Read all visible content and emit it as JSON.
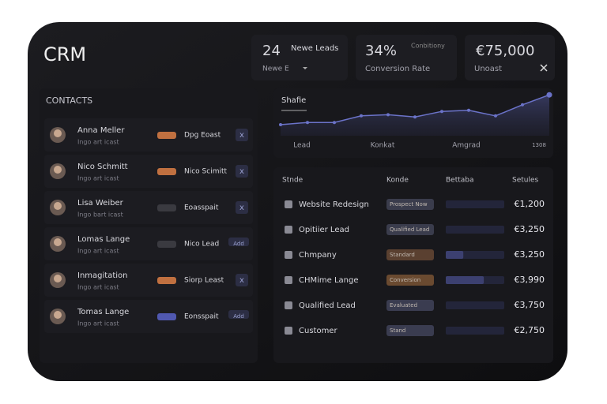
{
  "app": {
    "title": "CRM"
  },
  "kpis": [
    {
      "value": "24",
      "label": "Newe Leads",
      "sub": "Newe E"
    },
    {
      "value": "34%",
      "label": "Conbitiony",
      "sub": "Conversion Rate"
    },
    {
      "value": "€75,000",
      "label": "Unoast"
    }
  ],
  "contacts": {
    "title": "CONTACTS",
    "rows": [
      {
        "name": "Anna Meller",
        "sub": "Ingo art icast",
        "tag": "Dpg Eoast",
        "action": "x"
      },
      {
        "name": "Nico Schmitt",
        "sub": "Ingo art icast",
        "tag": "Nico Scimitt",
        "action": "x"
      },
      {
        "name": "Lisa Weiber",
        "sub": "Ingo bart icast",
        "tag": "Eoasspait",
        "action": "x"
      },
      {
        "name": "Lomas Lange",
        "sub": "Ingo art icast",
        "tag": "Nico Lead",
        "action": "Add"
      },
      {
        "name": "Inmagitation",
        "sub": "Ingo art icast",
        "tag": "Siorp Least",
        "action": "x"
      },
      {
        "name": "Tomas Lange",
        "sub": "Ingo art icast",
        "tag": "Eonsspait",
        "action": "Add"
      }
    ]
  },
  "chart": {
    "type": "line",
    "title": "Shafie",
    "x_labels": [
      "Lead",
      "Konkat",
      "Amgrad",
      "1308"
    ],
    "values": [
      2,
      2.4,
      2.4,
      3.6,
      3.8,
      3.4,
      4.4,
      4.6,
      3.6,
      5.6,
      7.4
    ],
    "ylim": [
      0,
      8
    ],
    "color": "#6b73c9"
  },
  "table": {
    "headers": [
      "Stnde",
      "Konde",
      "Bettaba",
      "Setules"
    ],
    "rows": [
      {
        "name": "Website Redesign",
        "status": "Prospect Now",
        "progress": 0,
        "amount": "€1,200"
      },
      {
        "name": "Opitiier Lead",
        "status": "Qualified Lead",
        "progress": 0,
        "amount": "€3,250"
      },
      {
        "name": "Chmpany",
        "status": "Standard",
        "progress": 0.3,
        "amount": "€3,250"
      },
      {
        "name": "CHMime Lange",
        "status": "Conversion",
        "progress": 0.65,
        "amount": "€3,990"
      },
      {
        "name": "Qualified Lead",
        "status": "Evaluated",
        "progress": 0,
        "amount": "€3,750"
      },
      {
        "name": "Customer",
        "status": "Stand",
        "progress": 0,
        "amount": "€2,750"
      }
    ]
  }
}
